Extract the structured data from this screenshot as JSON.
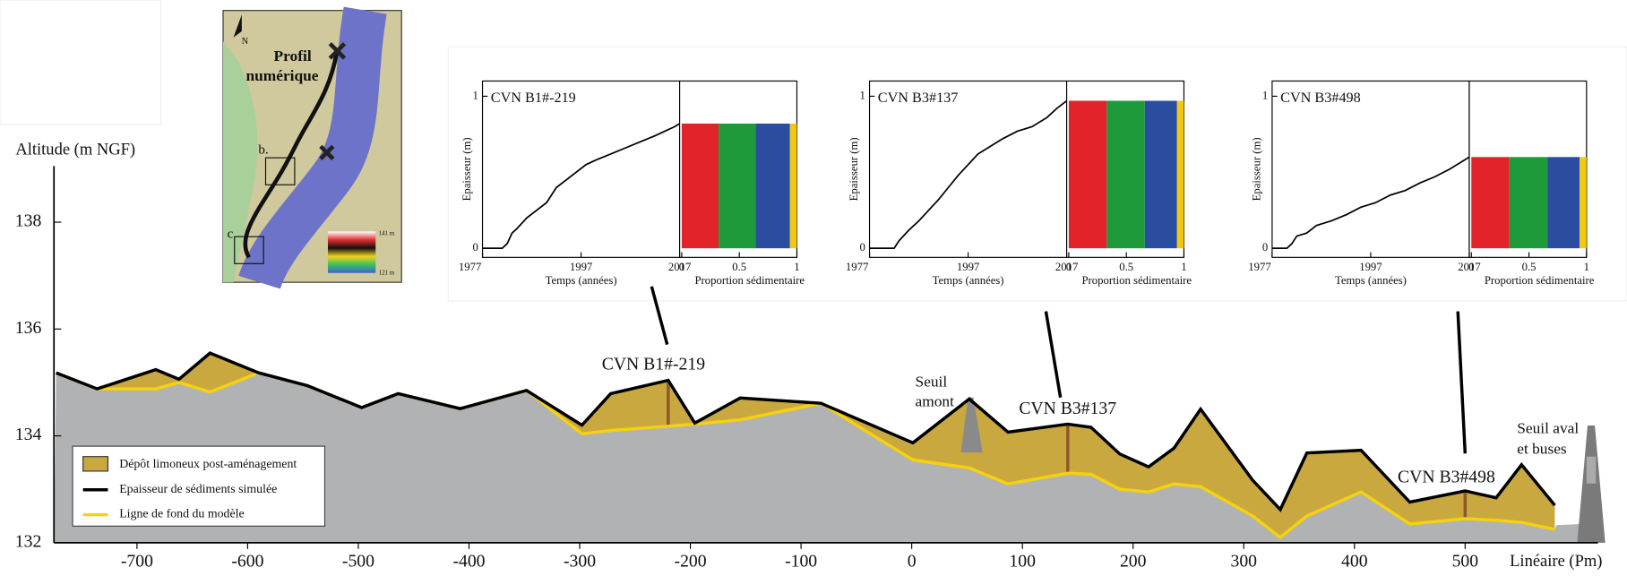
{
  "chart_data": [
    {
      "type": "profile",
      "ylabel": "Altitude (m NGF)",
      "xlabel": "Linéaire (Pm)",
      "x": [
        -773,
        -736,
        -683,
        -662,
        -634,
        -590,
        -546,
        -497,
        -464,
        -408,
        -348,
        -298,
        -272,
        -220,
        -196,
        -155,
        -82,
        1,
        52,
        87,
        141,
        162,
        188,
        214,
        237,
        261,
        308,
        333,
        357,
        406,
        450,
        500,
        528,
        551,
        581
      ],
      "series": [
        {
          "name": "Epaisseur de sédiments simulée",
          "color": "#000000",
          "values": [
            135.18,
            134.88,
            135.24,
            135.06,
            135.55,
            135.18,
            134.94,
            134.53,
            134.79,
            134.51,
            134.85,
            134.2,
            134.79,
            135.04,
            134.24,
            134.71,
            134.61,
            133.87,
            134.69,
            134.07,
            134.22,
            134.16,
            133.66,
            133.42,
            133.77,
            134.5,
            133.17,
            132.62,
            133.68,
            133.73,
            132.76,
            132.97,
            132.84,
            133.46,
            132.7
          ]
        },
        {
          "name": "Ligne de fond du modèle",
          "color": "#f5d10f",
          "values": [
            135.18,
            134.88,
            134.88,
            135.0,
            134.82,
            135.18,
            134.94,
            134.53,
            134.79,
            134.51,
            134.85,
            134.04,
            134.1,
            134.18,
            134.22,
            134.3,
            134.61,
            133.55,
            133.4,
            133.1,
            133.3,
            133.28,
            133.0,
            132.95,
            133.1,
            133.05,
            132.5,
            132.1,
            132.5,
            132.95,
            132.35,
            132.45,
            132.42,
            132.38,
            132.25
          ]
        }
      ],
      "fill_legend": {
        "name": "Dépôt limoneux post-aménagement",
        "color": "#c9a83f"
      },
      "ground_color": "#b1b2b4",
      "annotations": [
        "CVN B1#-219",
        "CVN B3#137",
        "CVN B3#498",
        "Seuil",
        "amont",
        "Seuil aval",
        "et buses"
      ],
      "xlim": [
        -775,
        620
      ],
      "xticks": [
        -700,
        -600,
        -500,
        -400,
        -300,
        -200,
        -100,
        0,
        100,
        200,
        300,
        400,
        500
      ],
      "ylim": [
        132,
        139.05
      ],
      "yticks": [
        132,
        134,
        136,
        138
      ]
    },
    {
      "type": "core",
      "title": "CVN B1#-219",
      "ylabel": "Epaisseur (m)",
      "xlabel": "Temps (années)",
      "x": [
        1977,
        1981,
        1982,
        1983,
        1984,
        1986,
        1988,
        1990,
        1992,
        1994,
        1996,
        1998,
        2000,
        2003,
        2006,
        2009,
        2012,
        2014,
        2016,
        2017
      ],
      "values": [
        0,
        0,
        0.03,
        0.1,
        0.13,
        0.2,
        0.25,
        0.3,
        0.4,
        0.45,
        0.5,
        0.55,
        0.58,
        0.62,
        0.66,
        0.7,
        0.74,
        0.77,
        0.8,
        0.82
      ],
      "xlim": [
        1977,
        2017
      ],
      "xticks": [
        1977,
        1997,
        2017
      ],
      "ylim": [
        -0.06,
        1.1
      ],
      "yticks": [
        0,
        1
      ],
      "proportion": {
        "xlabel": "Proportion sédimentaire",
        "xlim": [
          0,
          1
        ],
        "xticks": [
          0,
          0.5,
          1
        ],
        "values": [
          0.32,
          0.32,
          0.3,
          0.06
        ],
        "colors": [
          "#e3232a",
          "#1f9a3b",
          "#2a4da0",
          "#f2c811"
        ]
      }
    },
    {
      "type": "core",
      "title": "CVN B3#137",
      "ylabel": "Epaisseur (m)",
      "xlabel": "Temps (années)",
      "x": [
        1977,
        1982,
        1983,
        1985,
        1987,
        1989,
        1991,
        1993,
        1995,
        1997,
        1999,
        2001,
        2004,
        2007,
        2010,
        2013,
        2015,
        2017
      ],
      "values": [
        0,
        0,
        0.05,
        0.12,
        0.18,
        0.25,
        0.32,
        0.4,
        0.48,
        0.55,
        0.62,
        0.66,
        0.72,
        0.77,
        0.8,
        0.86,
        0.92,
        0.97
      ],
      "xlim": [
        1977,
        2017
      ],
      "xticks": [
        1977,
        1997,
        2017
      ],
      "ylim": [
        -0.06,
        1.1
      ],
      "yticks": [
        0,
        1
      ],
      "proportion": {
        "xlabel": "Proportion sédimentaire",
        "xlim": [
          0,
          1
        ],
        "xticks": [
          0,
          0.5,
          1
        ],
        "values": [
          0.33,
          0.33,
          0.28,
          0.06
        ],
        "colors": [
          "#e3232a",
          "#1f9a3b",
          "#2a4da0",
          "#f2c811"
        ]
      }
    },
    {
      "type": "core",
      "title": "CVN B3#498",
      "ylabel": "Epaisseur (m)",
      "xlabel": "Temps (années)",
      "x": [
        1977,
        1980,
        1981,
        1982,
        1984,
        1986,
        1989,
        1992,
        1995,
        1998,
        2001,
        2004,
        2007,
        2010,
        2013,
        2016,
        2017
      ],
      "values": [
        0,
        0,
        0.03,
        0.08,
        0.1,
        0.15,
        0.18,
        0.22,
        0.27,
        0.3,
        0.35,
        0.38,
        0.43,
        0.47,
        0.52,
        0.58,
        0.6
      ],
      "xlim": [
        1977,
        2017
      ],
      "xticks": [
        1977,
        1997,
        2017
      ],
      "ylim": [
        -0.06,
        1.1
      ],
      "yticks": [
        0,
        1
      ],
      "proportion": {
        "xlabel": "Proportion sédimentaire",
        "xlim": [
          0,
          1
        ],
        "xticks": [
          0,
          0.5,
          1
        ],
        "values": [
          0.33,
          0.33,
          0.28,
          0.06
        ],
        "colors": [
          "#e3232a",
          "#1f9a3b",
          "#2a4da0",
          "#f2c811"
        ]
      }
    }
  ],
  "map": {
    "north": "N",
    "title": [
      "Profil",
      "numérique"
    ],
    "labels": [
      "b.",
      "c"
    ],
    "scale": [
      "141 m",
      "121 m"
    ]
  }
}
